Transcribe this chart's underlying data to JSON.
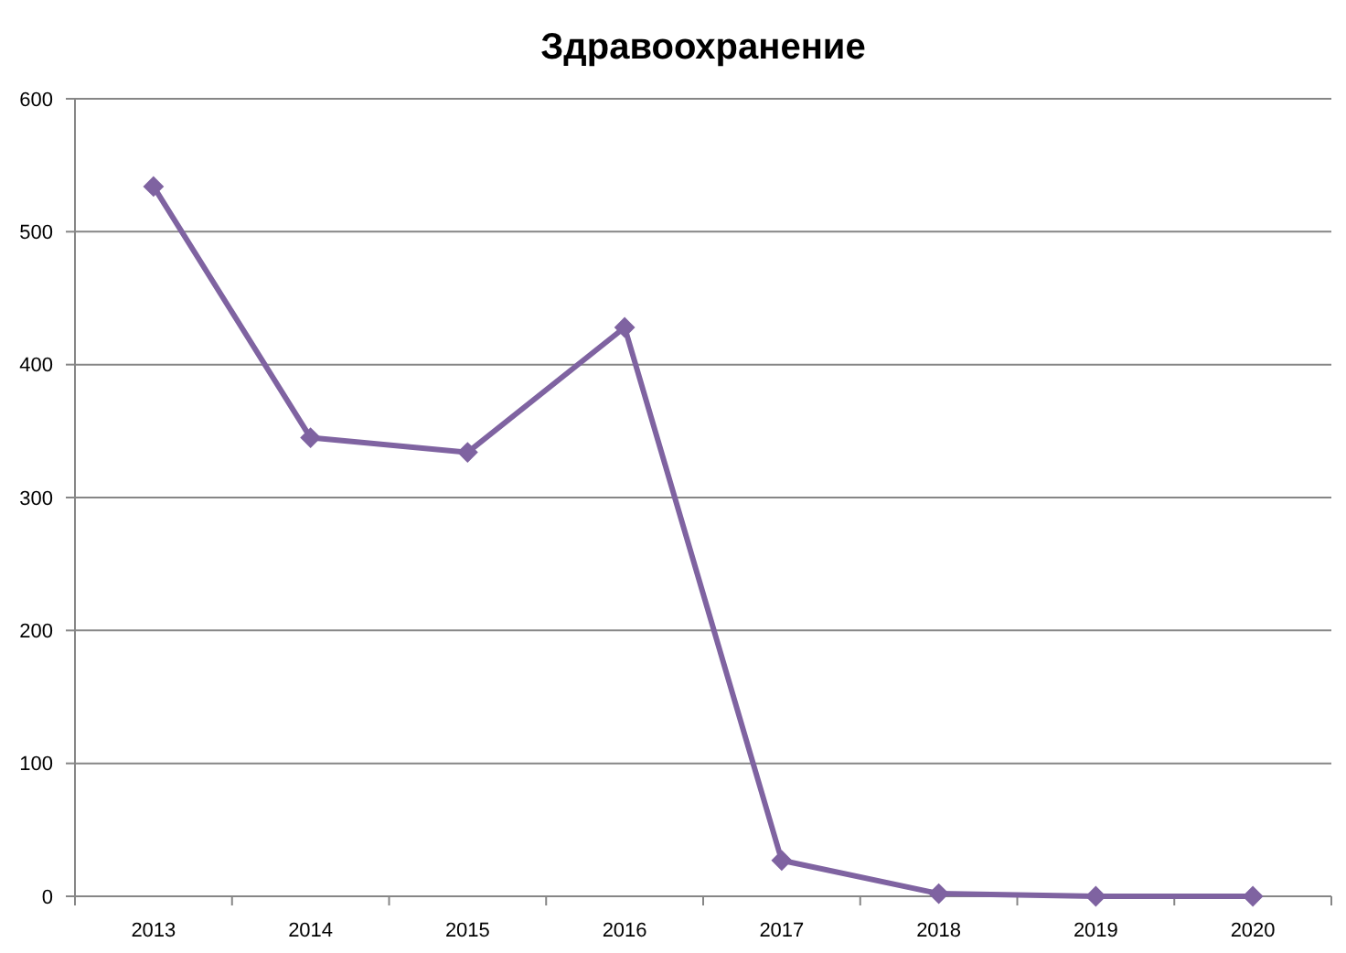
{
  "chart_data": {
    "type": "line",
    "title": "Здравоохранение",
    "categories": [
      "2013",
      "2014",
      "2015",
      "2016",
      "2017",
      "2018",
      "2019",
      "2020"
    ],
    "series": [
      {
        "color": "#7f63a1",
        "values": [
          534,
          345,
          334,
          428,
          27,
          2,
          0,
          0
        ]
      }
    ],
    "ylim": [
      0,
      600
    ],
    "yticks": [
      0,
      100,
      200,
      300,
      400,
      500,
      600
    ],
    "grid": "y",
    "marker": "diamond",
    "line_style": "solid"
  }
}
